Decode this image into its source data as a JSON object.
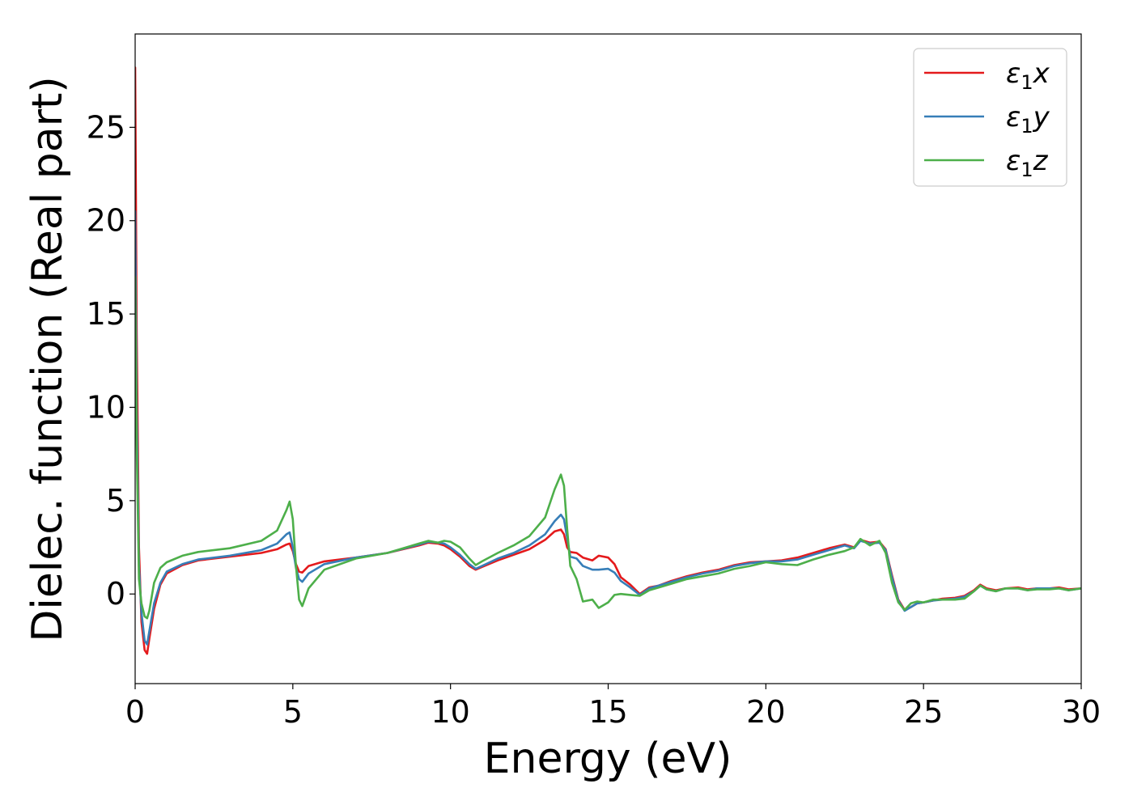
{
  "chart_data": {
    "type": "line",
    "title": "",
    "xlabel": "Energy (eV)",
    "ylabel": "Dielec. function (Real part)",
    "xlim": [
      0,
      30
    ],
    "ylim": [
      -4.8,
      30
    ],
    "xticks": [
      0,
      5,
      10,
      15,
      20,
      25,
      30
    ],
    "yticks": [
      0,
      5,
      10,
      15,
      20,
      25
    ],
    "grid": false,
    "legend_position": "top-right",
    "series": [
      {
        "name": "ε₁x",
        "legend": {
          "base": "ε",
          "sub": "1",
          "suffix": "x"
        },
        "color": "#e41a1c",
        "x": [
          0,
          0.05,
          0.12,
          0.2,
          0.3,
          0.38,
          0.45,
          0.6,
          0.8,
          1.0,
          1.5,
          2.0,
          3.0,
          4.0,
          4.5,
          4.8,
          4.9,
          5.0,
          5.1,
          5.2,
          5.3,
          5.5,
          6.0,
          7.0,
          8.0,
          9.0,
          9.3,
          9.6,
          9.8,
          10.0,
          10.3,
          10.6,
          10.8,
          11.0,
          11.5,
          12.0,
          12.5,
          13.0,
          13.3,
          13.5,
          13.6,
          13.7,
          13.8,
          14.0,
          14.2,
          14.5,
          14.7,
          15.0,
          15.2,
          15.4,
          15.7,
          16.0,
          16.3,
          16.6,
          17.0,
          17.5,
          18.0,
          18.5,
          19.0,
          19.5,
          20.0,
          20.5,
          21.0,
          21.5,
          22.0,
          22.5,
          22.8,
          23.0,
          23.3,
          23.6,
          23.8,
          24.0,
          24.2,
          24.4,
          24.6,
          24.8,
          25.0,
          25.3,
          25.6,
          26.0,
          26.3,
          26.6,
          26.8,
          27.0,
          27.3,
          27.6,
          28.0,
          28.3,
          28.6,
          29.0,
          29.3,
          29.6,
          30.0
        ],
        "y": [
          28.2,
          14,
          2.5,
          -1.5,
          -3.0,
          -3.2,
          -2.4,
          -0.8,
          0.5,
          1.1,
          1.55,
          1.8,
          2.0,
          2.2,
          2.4,
          2.65,
          2.7,
          2.3,
          1.6,
          1.2,
          1.15,
          1.5,
          1.75,
          1.95,
          2.2,
          2.6,
          2.75,
          2.7,
          2.6,
          2.4,
          2.0,
          1.5,
          1.3,
          1.45,
          1.8,
          2.1,
          2.4,
          2.9,
          3.35,
          3.45,
          3.2,
          2.5,
          2.25,
          2.2,
          1.95,
          1.8,
          2.05,
          1.95,
          1.6,
          0.9,
          0.5,
          0.0,
          0.35,
          0.45,
          0.7,
          0.95,
          1.15,
          1.3,
          1.55,
          1.7,
          1.75,
          1.8,
          1.95,
          2.2,
          2.45,
          2.65,
          2.5,
          2.9,
          2.75,
          2.8,
          2.4,
          1.0,
          -0.3,
          -0.85,
          -0.7,
          -0.5,
          -0.45,
          -0.35,
          -0.25,
          -0.2,
          -0.1,
          0.2,
          0.5,
          0.3,
          0.2,
          0.3,
          0.35,
          0.25,
          0.3,
          0.3,
          0.35,
          0.25,
          0.3
        ]
      },
      {
        "name": "ε₁y",
        "legend": {
          "base": "ε",
          "sub": "1",
          "suffix": "y"
        },
        "color": "#377eb8",
        "x": [
          0,
          0.05,
          0.12,
          0.2,
          0.3,
          0.38,
          0.45,
          0.6,
          0.8,
          1.0,
          1.5,
          2.0,
          3.0,
          4.0,
          4.5,
          4.8,
          4.9,
          5.0,
          5.1,
          5.2,
          5.3,
          5.5,
          6.0,
          7.0,
          8.0,
          9.0,
          9.3,
          9.6,
          9.8,
          10.0,
          10.3,
          10.6,
          10.8,
          11.0,
          11.5,
          12.0,
          12.5,
          13.0,
          13.3,
          13.5,
          13.6,
          13.7,
          13.8,
          14.0,
          14.2,
          14.5,
          14.7,
          15.0,
          15.2,
          15.4,
          15.7,
          16.0,
          16.3,
          16.6,
          17.0,
          17.5,
          18.0,
          18.5,
          19.0,
          19.5,
          20.0,
          20.5,
          21.0,
          21.5,
          22.0,
          22.5,
          22.8,
          23.0,
          23.3,
          23.6,
          23.8,
          24.0,
          24.2,
          24.4,
          24.6,
          24.8,
          25.0,
          25.3,
          25.6,
          26.0,
          26.3,
          26.6,
          26.8,
          27.0,
          27.3,
          27.6,
          28.0,
          28.3,
          28.6,
          29.0,
          29.3,
          29.6,
          30.0
        ],
        "y": [
          20.5,
          10,
          1.5,
          -1.0,
          -2.5,
          -2.7,
          -2.0,
          -0.5,
          0.6,
          1.2,
          1.6,
          1.85,
          2.05,
          2.35,
          2.7,
          3.2,
          3.3,
          2.5,
          1.4,
          0.8,
          0.65,
          1.1,
          1.6,
          1.95,
          2.2,
          2.65,
          2.8,
          2.75,
          2.7,
          2.5,
          2.1,
          1.6,
          1.35,
          1.5,
          1.9,
          2.2,
          2.6,
          3.2,
          3.9,
          4.25,
          4.0,
          3.0,
          2.0,
          1.9,
          1.5,
          1.3,
          1.3,
          1.35,
          1.15,
          0.7,
          0.35,
          -0.05,
          0.3,
          0.45,
          0.65,
          0.9,
          1.1,
          1.25,
          1.5,
          1.65,
          1.75,
          1.75,
          1.85,
          2.1,
          2.35,
          2.6,
          2.45,
          2.85,
          2.7,
          2.75,
          2.35,
          0.9,
          -0.35,
          -0.9,
          -0.7,
          -0.5,
          -0.45,
          -0.35,
          -0.3,
          -0.25,
          -0.15,
          0.15,
          0.45,
          0.25,
          0.15,
          0.3,
          0.3,
          0.2,
          0.3,
          0.3,
          0.3,
          0.2,
          0.3
        ]
      },
      {
        "name": "ε₁z",
        "legend": {
          "base": "ε",
          "sub": "1",
          "suffix": "z"
        },
        "color": "#4daf4a",
        "x": [
          0,
          0.05,
          0.12,
          0.2,
          0.3,
          0.38,
          0.45,
          0.6,
          0.8,
          1.0,
          1.5,
          2.0,
          3.0,
          4.0,
          4.5,
          4.8,
          4.9,
          5.0,
          5.1,
          5.2,
          5.3,
          5.5,
          6.0,
          7.0,
          8.0,
          9.0,
          9.3,
          9.6,
          9.8,
          10.0,
          10.3,
          10.6,
          10.8,
          11.0,
          11.5,
          12.0,
          12.5,
          13.0,
          13.3,
          13.5,
          13.6,
          13.7,
          13.8,
          14.0,
          14.2,
          14.5,
          14.7,
          15.0,
          15.2,
          15.4,
          15.7,
          16.0,
          16.3,
          16.6,
          17.0,
          17.5,
          18.0,
          18.5,
          19.0,
          19.5,
          20.0,
          20.5,
          21.0,
          21.5,
          22.0,
          22.5,
          22.8,
          23.0,
          23.3,
          23.6,
          23.8,
          24.0,
          24.2,
          24.4,
          24.6,
          24.8,
          25.0,
          25.3,
          25.6,
          26.0,
          26.3,
          26.6,
          26.8,
          27.0,
          27.3,
          27.6,
          28.0,
          28.3,
          28.6,
          29.0,
          29.3,
          29.6,
          30.0
        ],
        "y": [
          17.0,
          8,
          0.8,
          -0.5,
          -1.2,
          -1.3,
          -0.9,
          0.6,
          1.4,
          1.7,
          2.05,
          2.25,
          2.45,
          2.85,
          3.4,
          4.5,
          4.95,
          4.0,
          1.5,
          -0.3,
          -0.65,
          0.3,
          1.3,
          1.9,
          2.2,
          2.7,
          2.85,
          2.75,
          2.85,
          2.8,
          2.5,
          1.9,
          1.55,
          1.75,
          2.2,
          2.6,
          3.1,
          4.1,
          5.6,
          6.4,
          5.8,
          3.5,
          1.5,
          0.8,
          -0.4,
          -0.3,
          -0.75,
          -0.45,
          -0.05,
          0.0,
          -0.05,
          -0.1,
          0.2,
          0.35,
          0.55,
          0.8,
          0.95,
          1.1,
          1.35,
          1.5,
          1.7,
          1.6,
          1.55,
          1.85,
          2.1,
          2.3,
          2.5,
          2.95,
          2.6,
          2.85,
          2.2,
          0.6,
          -0.45,
          -0.85,
          -0.5,
          -0.4,
          -0.45,
          -0.3,
          -0.3,
          -0.3,
          -0.25,
          0.15,
          0.45,
          0.25,
          0.15,
          0.3,
          0.3,
          0.2,
          0.25,
          0.25,
          0.3,
          0.2,
          0.3
        ]
      }
    ]
  }
}
